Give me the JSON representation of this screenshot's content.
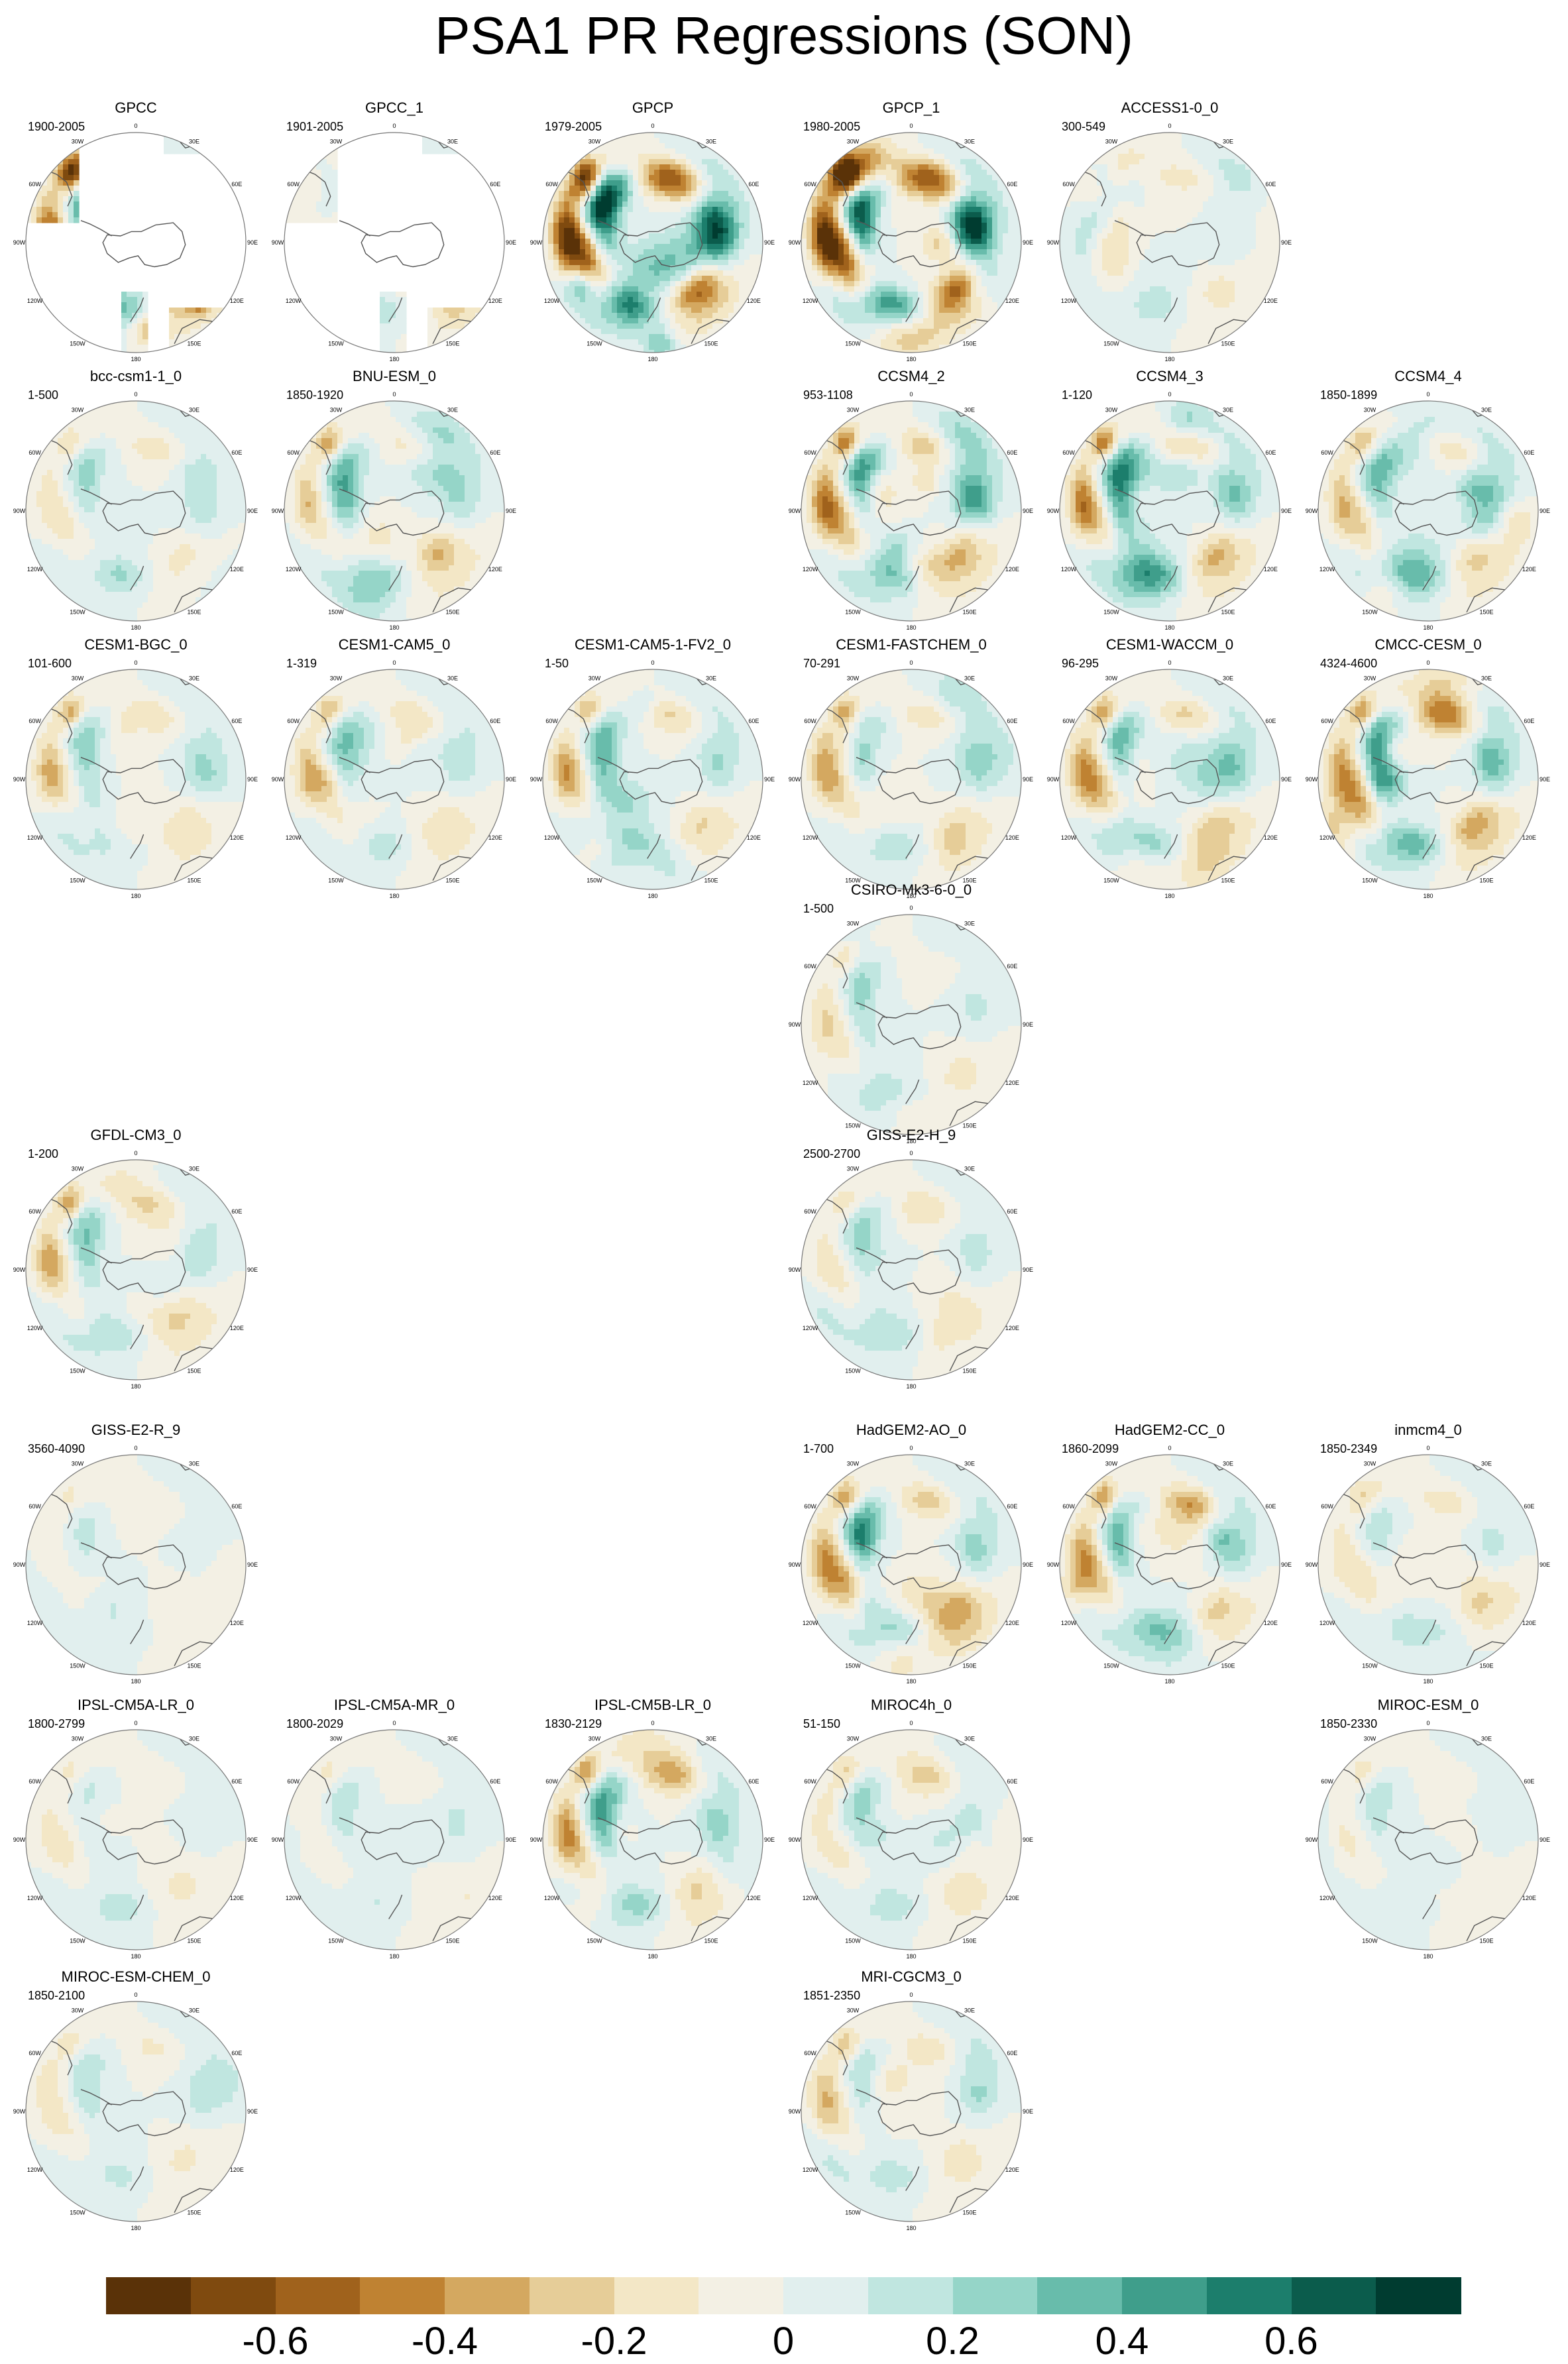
{
  "figure": {
    "title": "PSA1 PR Regressions (SON)",
    "hemisphere_map_labels": {
      "meridians": [
        "0",
        "30E",
        "60E",
        "90E",
        "120E",
        "150E",
        "180",
        "150W",
        "120W",
        "90W",
        "60W",
        "30W"
      ]
    },
    "panels": [
      {
        "name": "GPCC",
        "years": "1900-2005",
        "col": 0,
        "row": 0,
        "masked": true,
        "pattern": [
          0.55,
          -0.25,
          0.35,
          1.0
        ]
      },
      {
        "name": "GPCC_1",
        "years": "1901-2005",
        "col": 1,
        "row": 0,
        "masked": true,
        "pattern": [
          -0.2,
          0.3,
          0.35,
          0.6
        ]
      },
      {
        "name": "GPCP",
        "years": "1979-2005",
        "col": 2,
        "row": 0,
        "masked": false,
        "pattern": [
          0.7,
          -0.5,
          0.6,
          1.0
        ]
      },
      {
        "name": "GPCP_1",
        "years": "1980-2005",
        "col": 3,
        "row": 0,
        "masked": false,
        "pattern": [
          0.75,
          -0.55,
          0.6,
          1.0
        ]
      },
      {
        "name": "ACCESS1-0_0",
        "years": "300-549",
        "col": 4,
        "row": 0,
        "masked": false,
        "pattern": [
          -0.3,
          0.3,
          0.25,
          0.5
        ]
      },
      {
        "name": "bcc-csm1-1_0",
        "years": "1-500",
        "col": 0,
        "row": 1,
        "masked": false,
        "pattern": [
          0.3,
          -0.35,
          0.3,
          0.5
        ]
      },
      {
        "name": "BNU-ESM_0",
        "years": "1850-1920",
        "col": 1,
        "row": 1,
        "masked": false,
        "pattern": [
          0.5,
          -0.4,
          0.3,
          0.7
        ]
      },
      {
        "name": "CCSM4_2",
        "years": "953-1108",
        "col": 3,
        "row": 1,
        "masked": false,
        "pattern": [
          0.6,
          -0.45,
          0.4,
          0.8
        ]
      },
      {
        "name": "CCSM4_3",
        "years": "1-120",
        "col": 4,
        "row": 1,
        "masked": false,
        "pattern": [
          0.6,
          -0.4,
          0.4,
          0.8
        ]
      },
      {
        "name": "CCSM4_4",
        "years": "1850-1899",
        "col": 5,
        "row": 1,
        "masked": false,
        "pattern": [
          0.35,
          -0.3,
          0.3,
          0.8
        ]
      },
      {
        "name": "CESM1-BGC_0",
        "years": "101-600",
        "col": 0,
        "row": 2,
        "masked": false,
        "pattern": [
          0.55,
          -0.35,
          0.3,
          0.6
        ]
      },
      {
        "name": "CESM1-CAM5_0",
        "years": "1-319",
        "col": 1,
        "row": 2,
        "masked": false,
        "pattern": [
          0.5,
          -0.35,
          0.3,
          0.6
        ]
      },
      {
        "name": "CESM1-CAM5-1-FV2_0",
        "years": "1-50",
        "col": 2,
        "row": 2,
        "masked": false,
        "pattern": [
          0.55,
          -0.4,
          0.3,
          0.7
        ]
      },
      {
        "name": "CESM1-FASTCHEM_0",
        "years": "70-291",
        "col": 3,
        "row": 2,
        "masked": false,
        "pattern": [
          0.55,
          -0.4,
          0.3,
          0.6
        ]
      },
      {
        "name": "CESM1-WACCM_0",
        "years": "96-295",
        "col": 4,
        "row": 2,
        "masked": false,
        "pattern": [
          0.5,
          -0.45,
          0.35,
          0.7
        ]
      },
      {
        "name": "CMCC-CESM_0",
        "years": "4324-4600",
        "col": 5,
        "row": 2,
        "masked": false,
        "pattern": [
          0.4,
          -0.55,
          0.4,
          0.9
        ]
      },
      {
        "name": "CSIRO-Mk3-6-0_0",
        "years": "1-500",
        "col": 3,
        "row": 3,
        "masked": false,
        "pattern": [
          0.35,
          -0.4,
          0.25,
          0.5
        ]
      },
      {
        "name": "GFDL-CM3_0",
        "years": "1-200",
        "col": 0,
        "row": 4,
        "masked": false,
        "pattern": [
          0.6,
          -0.4,
          0.3,
          0.6
        ]
      },
      {
        "name": "GISS-E2-H_9",
        "years": "2500-2700",
        "col": 3,
        "row": 4,
        "masked": false,
        "pattern": [
          0.25,
          -0.35,
          0.3,
          0.5
        ]
      },
      {
        "name": "GISS-E2-R_9",
        "years": "3560-4090",
        "col": 0,
        "row": 5,
        "masked": false,
        "pattern": [
          0.2,
          -0.25,
          0.2,
          0.4
        ]
      },
      {
        "name": "HadGEM2-AO_0",
        "years": "1-700",
        "col": 3,
        "row": 5,
        "masked": false,
        "pattern": [
          0.5,
          -0.45,
          0.35,
          0.7
        ]
      },
      {
        "name": "HadGEM2-CC_0",
        "years": "1860-2099",
        "col": 4,
        "row": 5,
        "masked": false,
        "pattern": [
          0.55,
          -0.5,
          0.35,
          0.7
        ]
      },
      {
        "name": "inmcm4_0",
        "years": "1850-2349",
        "col": 5,
        "row": 5,
        "masked": false,
        "pattern": [
          0.25,
          -0.3,
          0.3,
          0.5
        ]
      },
      {
        "name": "IPSL-CM5A-LR_0",
        "years": "1800-2799",
        "col": 0,
        "row": 6,
        "masked": false,
        "pattern": [
          0.25,
          -0.3,
          0.25,
          0.4
        ]
      },
      {
        "name": "IPSL-CM5A-MR_0",
        "years": "1800-2029",
        "col": 1,
        "row": 6,
        "masked": false,
        "pattern": [
          0.25,
          -0.3,
          0.25,
          0.4
        ]
      },
      {
        "name": "IPSL-CM5B-LR_0",
        "years": "1830-2129",
        "col": 2,
        "row": 6,
        "masked": false,
        "pattern": [
          0.6,
          -0.45,
          0.35,
          0.7
        ]
      },
      {
        "name": "MIROC4h_0",
        "years": "51-150",
        "col": 3,
        "row": 6,
        "masked": false,
        "pattern": [
          0.3,
          -0.3,
          0.25,
          0.6
        ]
      },
      {
        "name": "MIROC-ESM_0",
        "years": "1850-2330",
        "col": 5,
        "row": 6,
        "masked": false,
        "pattern": [
          0.3,
          -0.3,
          0.25,
          0.4
        ]
      },
      {
        "name": "MIROC-ESM-CHEM_0",
        "years": "1850-2100",
        "col": 0,
        "row": 7,
        "masked": false,
        "pattern": [
          0.35,
          -0.3,
          0.3,
          0.4
        ]
      },
      {
        "name": "MRI-CGCM3_0",
        "years": "1851-2350",
        "col": 3,
        "row": 7,
        "masked": false,
        "pattern": [
          0.5,
          -0.35,
          0.3,
          0.5
        ]
      }
    ]
  },
  "colorbar": {
    "levels": [
      -0.8,
      -0.7,
      -0.6,
      -0.5,
      -0.4,
      -0.3,
      -0.2,
      -0.1,
      0.0,
      0.1,
      0.2,
      0.3,
      0.4,
      0.5,
      0.6,
      0.7,
      0.8
    ],
    "colors": [
      "#5a3208",
      "#7f4a0f",
      "#a0621c",
      "#bf8232",
      "#d4a860",
      "#e6cd98",
      "#f3e7c6",
      "#f3f0e4",
      "#e1efee",
      "#c0e6e0",
      "#95d5c8",
      "#68bcab",
      "#3f9e8b",
      "#1c7e6c",
      "#0b5c4c",
      "#003c30"
    ],
    "tick_values": [
      -0.6,
      -0.4,
      -0.2,
      0,
      0.2,
      0.4,
      0.6
    ],
    "tick_labels": [
      "-0.6",
      "-0.4",
      "-0.2",
      "0",
      "0.2",
      "0.4",
      "0.6"
    ]
  }
}
